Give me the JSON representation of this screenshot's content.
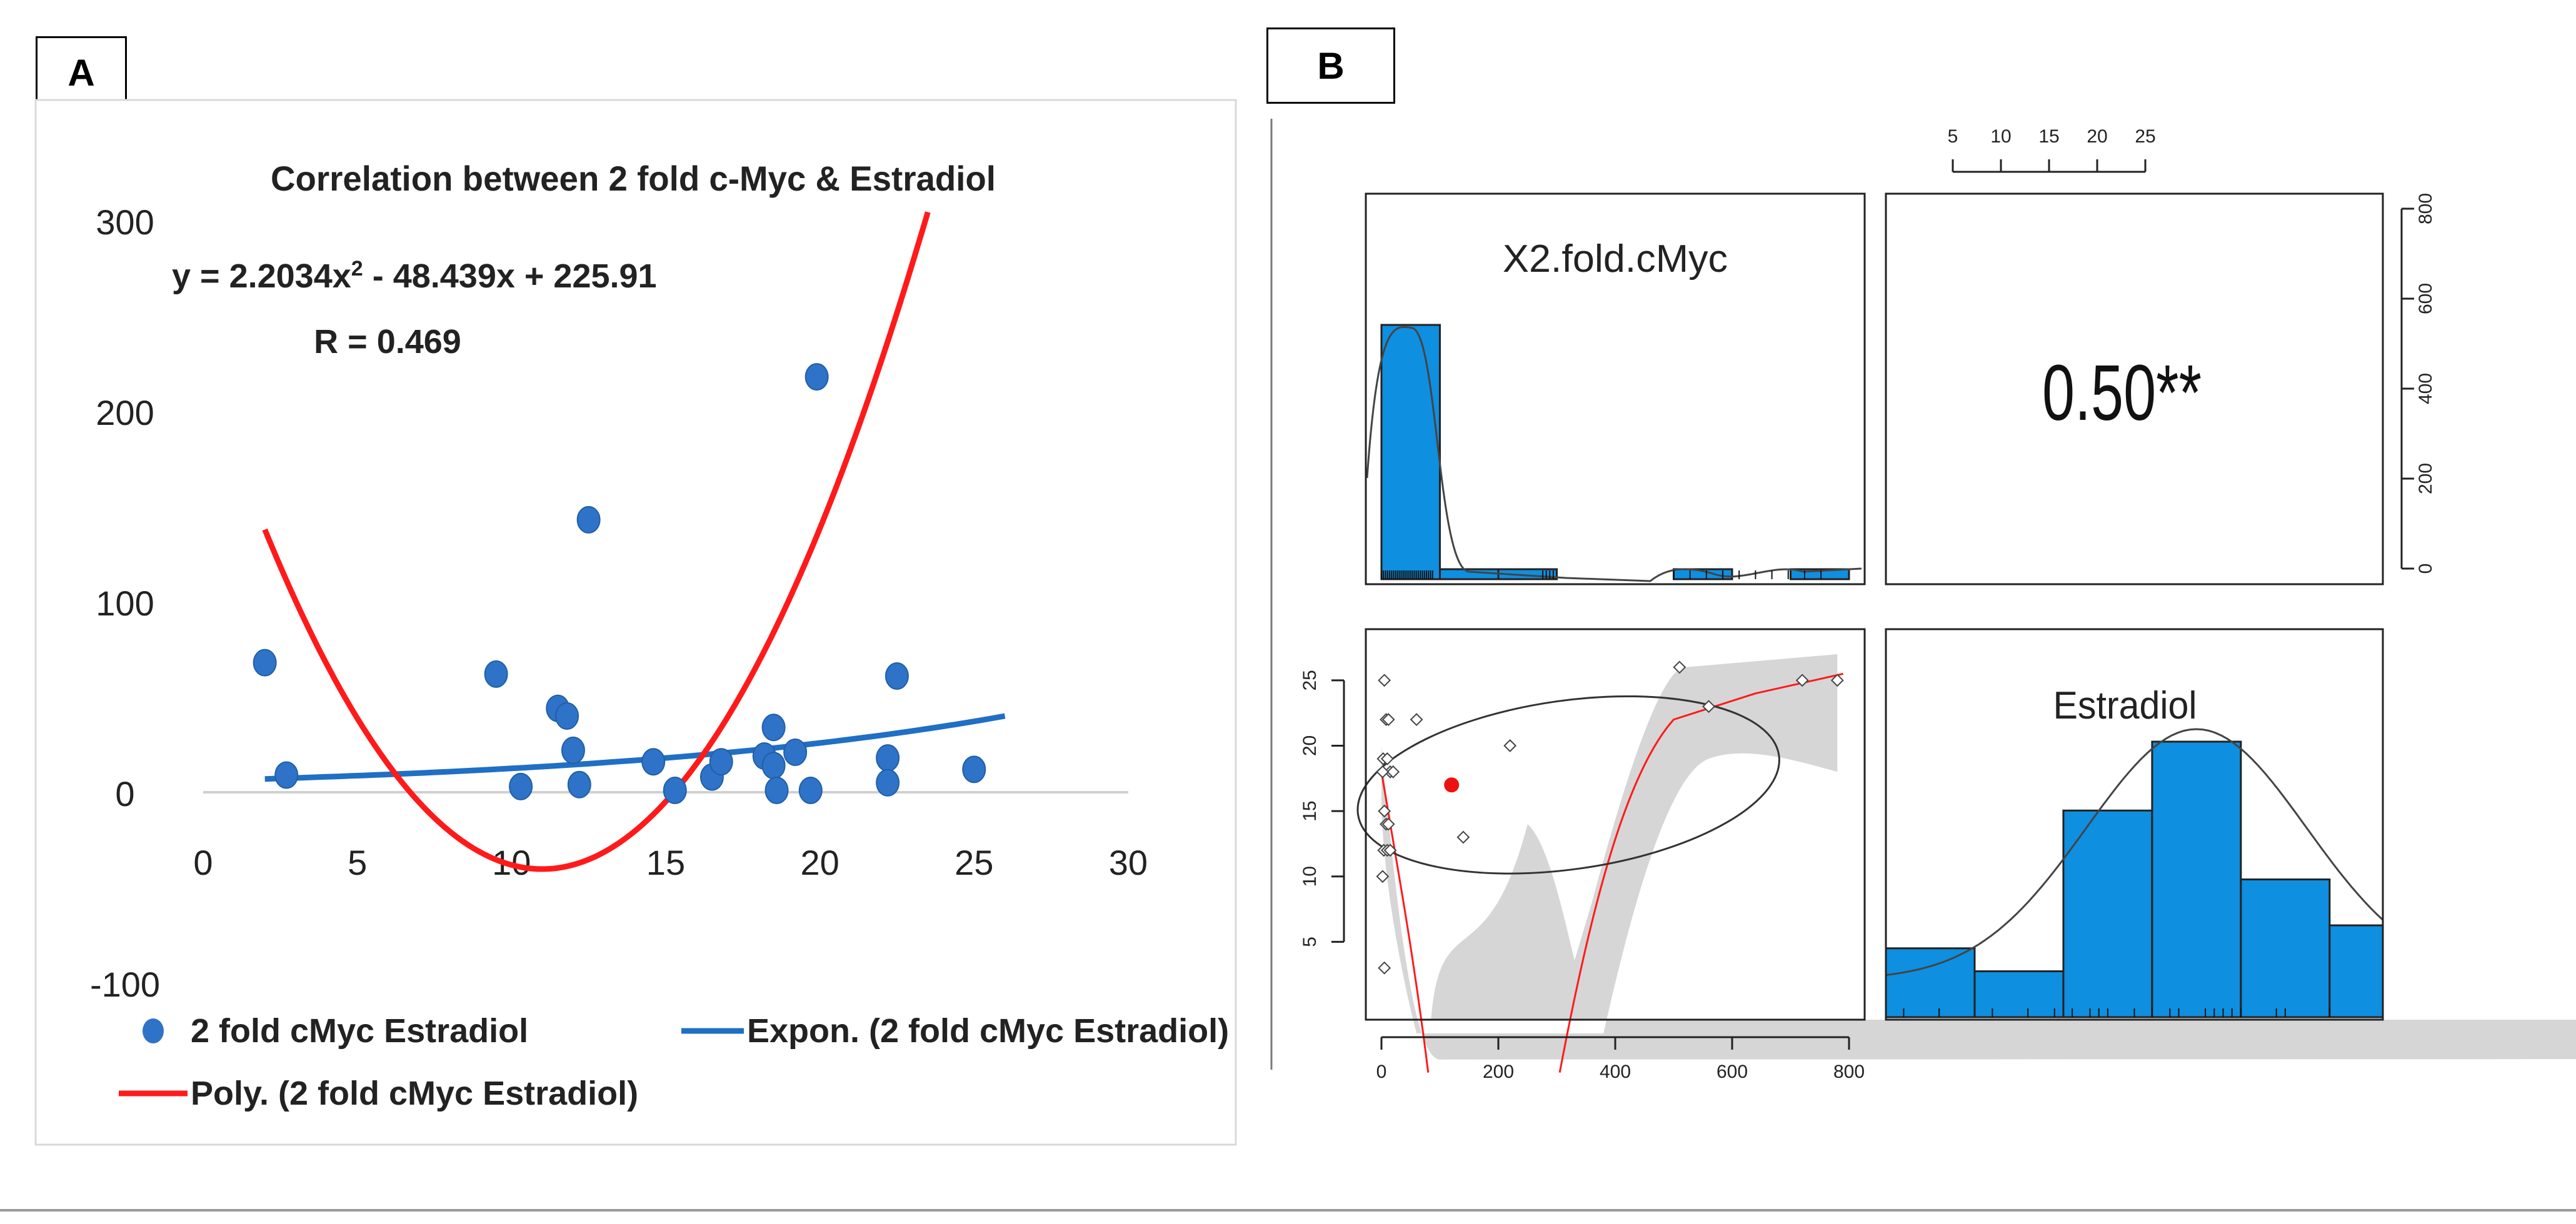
{
  "panel_a_label": "A",
  "panel_b_label": "B",
  "colors": {
    "marker": "#2f73c8",
    "expon_line": "#1f6fc4",
    "poly_line": "#ff1a1a",
    "hist_fill": "#0e8fe0",
    "band": "#d6d6d6",
    "loess_dot": "#ee1111"
  },
  "chart_data": [
    {
      "panel": "A",
      "type": "scatter",
      "title": "Correlation between 2 fold c-Myc & Estradiol",
      "equation_lhs": "y = 2.2034x",
      "equation_exp": "2",
      "equation_rhs": " - 48.439x + 225.91",
      "r_label": "R = 0.469",
      "xlim": [
        0,
        30
      ],
      "ylim": [
        -100,
        300
      ],
      "x_ticks": [
        "0",
        "5",
        "10",
        "15",
        "20",
        "25",
        "30"
      ],
      "y_ticks": [
        "300",
        "200",
        "100",
        "0",
        "-100"
      ],
      "points": [
        [
          2.0,
          68
        ],
        [
          2.7,
          9
        ],
        [
          9.5,
          62
        ],
        [
          10.3,
          3
        ],
        [
          11.5,
          44
        ],
        [
          11.8,
          40
        ],
        [
          12.0,
          22
        ],
        [
          12.2,
          4
        ],
        [
          12.5,
          143
        ],
        [
          14.6,
          16
        ],
        [
          15.3,
          1
        ],
        [
          16.5,
          8
        ],
        [
          16.8,
          16
        ],
        [
          18.2,
          19
        ],
        [
          18.5,
          34
        ],
        [
          18.5,
          14
        ],
        [
          18.6,
          1
        ],
        [
          19.2,
          21
        ],
        [
          19.7,
          1
        ],
        [
          19.9,
          218
        ],
        [
          22.2,
          18
        ],
        [
          22.2,
          5
        ],
        [
          22.5,
          61
        ],
        [
          25.0,
          12
        ]
      ],
      "poly_coeffs": [
        2.2034,
        -48.439,
        225.91
      ],
      "poly_x_range": [
        2.0,
        23.5
      ],
      "expon_start": [
        2.0,
        7
      ],
      "expon_end": [
        26.0,
        40
      ],
      "legend": {
        "scatter": "2 fold cMyc Estradiol",
        "expon": "Expon. (2 fold cMyc Estradiol)",
        "poly": "Poly. (2 fold cMyc Estradiol)"
      }
    },
    {
      "panel": "B",
      "type": "pairs",
      "var1_label": "X2.fold.cMyc",
      "var2_label": "Estradiol",
      "correlation_text": "0.50**",
      "top_axis_ticks": [
        "5",
        "10",
        "15",
        "20",
        "25"
      ],
      "right_axis_ticks": [
        "0",
        "200",
        "400",
        "600",
        "800"
      ],
      "left_axis_ticks": [
        "5",
        "10",
        "15",
        "20",
        "25"
      ],
      "bottom_axis_ticks": [
        "0",
        "200",
        "400",
        "600",
        "800"
      ],
      "hist_var1": {
        "breaks": [
          0,
          100,
          200,
          300,
          400,
          500,
          600,
          700,
          800
        ],
        "counts": [
          26,
          1,
          1,
          0,
          0,
          1,
          0,
          1
        ]
      },
      "hist_var2": {
        "breaks": [
          0,
          5,
          10,
          15,
          20,
          25,
          28
        ],
        "counts": [
          3,
          2,
          9,
          12,
          6,
          4
        ]
      },
      "scatter_points": [
        [
          5,
          25
        ],
        [
          8,
          22
        ],
        [
          12,
          22
        ],
        [
          3,
          19
        ],
        [
          10,
          19
        ],
        [
          15,
          18
        ],
        [
          20,
          18
        ],
        [
          2,
          18
        ],
        [
          5,
          15
        ],
        [
          8,
          14
        ],
        [
          12,
          14
        ],
        [
          4,
          12
        ],
        [
          10,
          12
        ],
        [
          15,
          12
        ],
        [
          2,
          10
        ],
        [
          5,
          3
        ],
        [
          60,
          22
        ],
        [
          140,
          13
        ],
        [
          220,
          20
        ],
        [
          560,
          23
        ],
        [
          720,
          25
        ],
        [
          780,
          25
        ],
        [
          510,
          26
        ]
      ],
      "mean_point": [
        120,
        17
      ]
    }
  ]
}
